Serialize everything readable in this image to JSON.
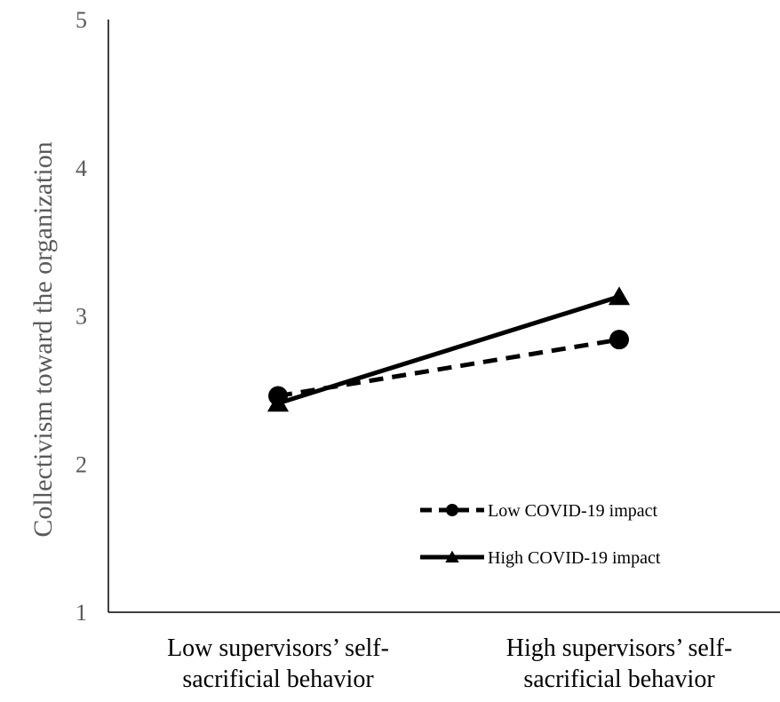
{
  "chart_data": {
    "type": "line",
    "title": "",
    "ylabel": "Collectivism toward the organization",
    "xlabel": "",
    "ylim": [
      1,
      5
    ],
    "yticks": [
      1,
      2,
      3,
      4,
      5
    ],
    "grid": false,
    "legend_position": "lower-right inside plot",
    "categories": [
      [
        "Low supervisors’ self-",
        "sacrificial behavior"
      ],
      [
        "High supervisors’ self-",
        "sacrificial behavior"
      ]
    ],
    "series": [
      {
        "name": "Low COVID-19 impact",
        "values": [
          2.46,
          2.84
        ],
        "line_style": "dashed",
        "marker": "circle",
        "color": "#000000"
      },
      {
        "name": "High COVID-19 impact",
        "values": [
          2.41,
          3.13
        ],
        "line_style": "solid",
        "marker": "triangle",
        "color": "#000000"
      }
    ]
  }
}
